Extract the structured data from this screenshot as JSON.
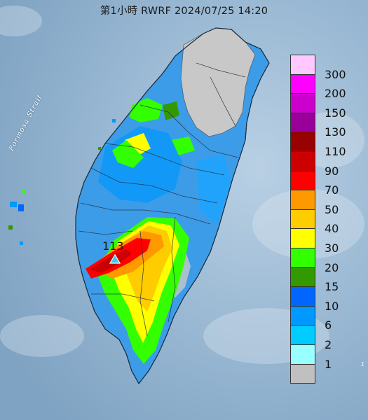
{
  "title": "第1小時  RWRF 2024/07/25 14:20",
  "strait_label": "Formosa Strait",
  "max_label": "113",
  "edge_note": "1",
  "legend": {
    "levels": [
      {
        "label": "300",
        "color": "#ffc8ff"
      },
      {
        "label": "200",
        "color": "#ff00ff"
      },
      {
        "label": "150",
        "color": "#cc00cc"
      },
      {
        "label": "130",
        "color": "#990099"
      },
      {
        "label": "110",
        "color": "#990000"
      },
      {
        "label": "90",
        "color": "#cc0000"
      },
      {
        "label": "70",
        "color": "#ff0000"
      },
      {
        "label": "50",
        "color": "#ff9900"
      },
      {
        "label": "40",
        "color": "#ffcc00"
      },
      {
        "label": "30",
        "color": "#ffff00"
      },
      {
        "label": "20",
        "color": "#33ff00"
      },
      {
        "label": "15",
        "color": "#339900"
      },
      {
        "label": "10",
        "color": "#0066ff"
      },
      {
        "label": "6",
        "color": "#0099ff"
      },
      {
        "label": "2",
        "color": "#00ccff"
      },
      {
        "label": "1",
        "color": "#99ffff"
      },
      {
        "label": "",
        "color": "#c0c0c0"
      }
    ]
  },
  "colors": {
    "sea": "#8fb0cc",
    "land_gray": "#c8c8c8",
    "marker": "#3fc7e6"
  }
}
